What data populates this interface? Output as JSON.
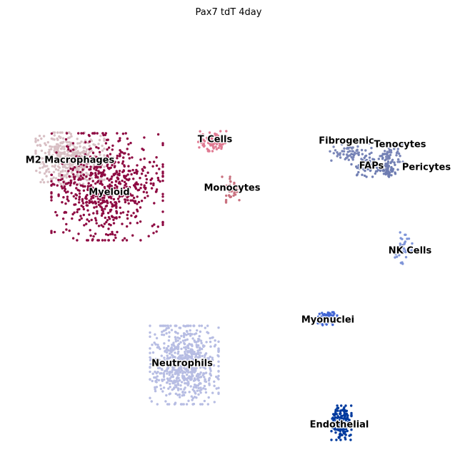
{
  "chart_data": {
    "type": "scatter",
    "title": "Pax7 tdT 4day",
    "xlabel": "",
    "ylabel": "",
    "axes_visible": false,
    "grid": false,
    "legend": "on data",
    "clusters": [
      {
        "name": "M2 Macrophages",
        "color": "#d8bfc4",
        "center": [
          98,
          222
        ],
        "spread": [
          48,
          36
        ],
        "count": 420
      },
      {
        "name": "Myeloid",
        "color": "#8e0a42",
        "center": [
          150,
          262
        ],
        "spread": [
          78,
          75
        ],
        "count": 650
      },
      {
        "name": "T Cells",
        "color": "#e07a92",
        "center": [
          297,
          198
        ],
        "spread": [
          22,
          14
        ],
        "count": 90
      },
      {
        "name": "Monocytes",
        "color": "#c9717f",
        "center": [
          323,
          266
        ],
        "spread": [
          12,
          18
        ],
        "count": 35
      },
      {
        "name": "Fibrogenic",
        "color": "#7a86b8",
        "center": [
          490,
          215
        ],
        "spread": [
          30,
          14
        ],
        "count": 60
      },
      {
        "name": "Tenocytes",
        "color": "#7a86b8",
        "center": [
          548,
          215
        ],
        "spread": [
          16,
          12
        ],
        "count": 40
      },
      {
        "name": "FAPs",
        "color": "#7280b4",
        "center": [
          520,
          232
        ],
        "spread": [
          28,
          16
        ],
        "count": 90
      },
      {
        "name": "Pericytes",
        "color": "#6f7db2",
        "center": [
          545,
          238
        ],
        "spread": [
          12,
          10
        ],
        "count": 40
      },
      {
        "name": "NK Cells",
        "color": "#7f95d8",
        "center": [
          565,
          348
        ],
        "spread": [
          12,
          22
        ],
        "count": 35
      },
      {
        "name": "Myonuclei",
        "color": "#4266d4",
        "center": [
          458,
          447
        ],
        "spread": [
          14,
          9
        ],
        "count": 90
      },
      {
        "name": "Neutrophils",
        "color": "#b7bde3",
        "center": [
          258,
          512
        ],
        "spread": [
          48,
          55
        ],
        "count": 700
      },
      {
        "name": "Endothelial",
        "color": "#003a9e",
        "center": [
          478,
          593
        ],
        "spread": [
          14,
          24
        ],
        "count": 170
      }
    ],
    "label_positions": {
      "M2 Macrophages": [
        98,
        225
      ],
      "Myeloid": [
        153,
        270
      ],
      "T Cells": [
        301,
        196
      ],
      "Monocytes": [
        325,
        264
      ],
      "Fibrogenic": [
        485,
        198
      ],
      "Tenocytes": [
        560,
        203
      ],
      "FAPs": [
        520,
        233
      ],
      "Pericytes": [
        597,
        235
      ],
      "NK Cells": [
        574,
        352
      ],
      "Myonuclei": [
        459,
        449
      ],
      "Neutrophils": [
        255,
        510
      ],
      "Endothelial": [
        475,
        596
      ]
    }
  }
}
